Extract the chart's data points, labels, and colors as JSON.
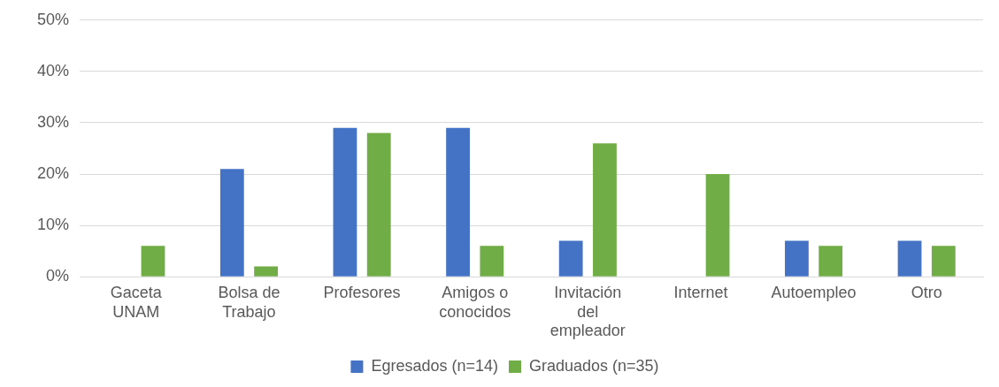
{
  "chart_data": {
    "type": "bar",
    "categories": [
      "Gaceta\nUNAM",
      "Bolsa de\nTrabajo",
      "Profesores",
      "Amigos o\nconocidos",
      "Invitación\ndel\nempleador",
      "Internet",
      "Autoempleo",
      "Otro"
    ],
    "series": [
      {
        "name": "Egresados (n=14)",
        "color": "#4472c4",
        "values": [
          0,
          21,
          29,
          29,
          7,
          0,
          7,
          7
        ]
      },
      {
        "name": "Graduados (n=35)",
        "color": "#70ad47",
        "values": [
          6,
          2,
          28,
          6,
          26,
          20,
          6,
          6
        ]
      }
    ],
    "ylim": [
      0,
      50
    ],
    "yticks": [
      {
        "value": 0,
        "label": "0%"
      },
      {
        "value": 10,
        "label": "10%"
      },
      {
        "value": 20,
        "label": "20%"
      },
      {
        "value": 30,
        "label": "30%"
      },
      {
        "value": 40,
        "label": "40%"
      },
      {
        "value": 50,
        "label": "50%"
      }
    ],
    "grid": "y",
    "legend": "bottom"
  }
}
